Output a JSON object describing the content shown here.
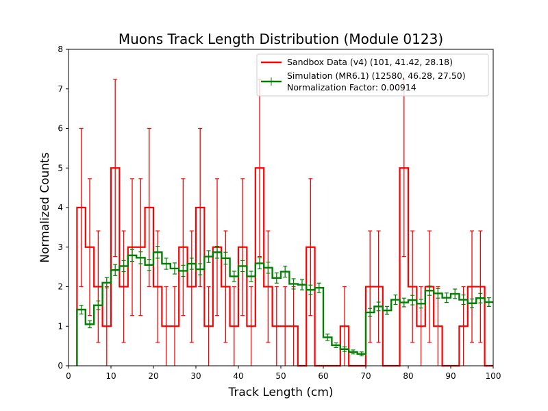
{
  "chart_data": {
    "type": "histogram-step",
    "title": "Muons Track Length Distribution (Module 0123)",
    "xlabel": "Track Length (cm)",
    "ylabel": "Normalized Counts",
    "xlim": [
      0,
      100
    ],
    "ylim": [
      0,
      8
    ],
    "xticks": [
      0,
      10,
      20,
      30,
      40,
      50,
      60,
      70,
      80,
      90,
      100
    ],
    "yticks": [
      0,
      1,
      2,
      3,
      4,
      5,
      6,
      7,
      8
    ],
    "grid": false,
    "legend_position": "top-right",
    "bin_edges": [
      2,
      4,
      6,
      8,
      10,
      12,
      14,
      16,
      18,
      20,
      22,
      24,
      26,
      28,
      30,
      32,
      34,
      36,
      38,
      40,
      42,
      44,
      46,
      48,
      50,
      52,
      54,
      56,
      58,
      60,
      62,
      64,
      66,
      68,
      70,
      72,
      74,
      76,
      78,
      80,
      82,
      84,
      86,
      88,
      90,
      92,
      94,
      96,
      98,
      100
    ],
    "series": [
      {
        "name": "Sandbox Data (v4) (101, 41.42, 28.18)",
        "color": "#ff0000",
        "values": [
          4,
          3,
          2,
          1,
          5,
          2,
          3,
          3,
          4,
          2,
          1,
          1,
          3,
          2,
          4,
          1,
          3,
          2,
          1,
          3,
          1,
          5,
          2,
          1,
          1,
          1,
          0,
          3,
          0,
          0,
          0,
          1,
          0,
          0,
          2,
          2,
          0,
          0,
          5,
          2,
          1,
          2,
          1,
          0,
          0,
          1,
          2,
          2,
          0
        ],
        "errors": [
          2,
          1.73,
          1.41,
          1,
          2.24,
          1.41,
          1.73,
          1.73,
          2,
          1.41,
          1,
          1,
          1.73,
          1.41,
          2,
          1,
          1.73,
          1.41,
          1,
          1.73,
          1,
          2.24,
          1.41,
          1,
          1,
          1,
          0,
          1.73,
          0,
          0,
          0,
          1,
          0,
          0,
          1.41,
          1.41,
          0,
          0,
          2.24,
          1.41,
          1,
          1.41,
          1,
          0,
          0,
          1,
          1.41,
          1.41,
          0
        ]
      },
      {
        "name": "Simulation (MR6.1) (12580, 46.28, 27.50)",
        "color": "#008000",
        "values": [
          1.42,
          1.05,
          1.53,
          2.1,
          2.42,
          2.52,
          2.79,
          2.73,
          2.55,
          2.87,
          2.58,
          2.46,
          2.4,
          2.58,
          2.44,
          2.76,
          2.87,
          2.72,
          2.26,
          2.52,
          2.26,
          2.59,
          2.48,
          2.22,
          2.38,
          2.07,
          2.05,
          1.92,
          1.97,
          0.72,
          0.52,
          0.42,
          0.35,
          0.3,
          1.35,
          1.5,
          1.4,
          1.67,
          1.6,
          1.66,
          1.57,
          1.9,
          1.83,
          1.72,
          1.82,
          1.67,
          1.58,
          1.71,
          1.61
        ],
        "errors": [
          0.11,
          0.09,
          0.11,
          0.13,
          0.14,
          0.14,
          0.15,
          0.15,
          0.14,
          0.15,
          0.14,
          0.14,
          0.14,
          0.14,
          0.14,
          0.15,
          0.15,
          0.15,
          0.13,
          0.14,
          0.13,
          0.14,
          0.14,
          0.13,
          0.14,
          0.13,
          0.13,
          0.12,
          0.12,
          0.08,
          0.06,
          0.06,
          0.05,
          0.05,
          0.1,
          0.11,
          0.1,
          0.12,
          0.11,
          0.12,
          0.11,
          0.12,
          0.12,
          0.12,
          0.12,
          0.12,
          0.11,
          0.12,
          0.11
        ]
      }
    ],
    "legend_extra": "Normalization Factor: 0.00914"
  }
}
